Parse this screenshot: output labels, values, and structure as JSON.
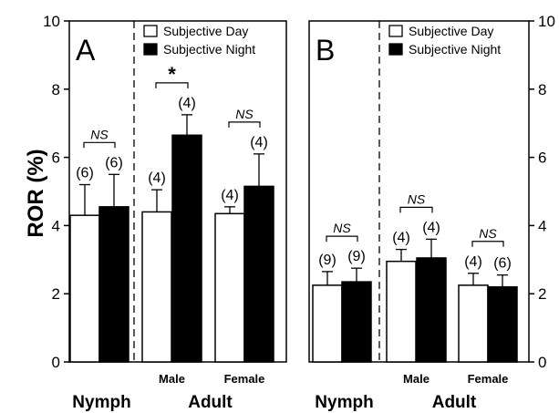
{
  "chart_data": {
    "type": "bar",
    "ylabel": "ROR (%)",
    "ylim": [
      0,
      10
    ],
    "yticks": [
      "0",
      "2",
      "4",
      "6",
      "8",
      "10"
    ],
    "legend": [
      "Subjective Day",
      "Subjective Night"
    ],
    "colors": {
      "day": "#ffffff",
      "night": "#000000"
    },
    "groups": [
      {
        "label": "Nymph",
        "sublabel": ""
      },
      {
        "label": "Adult",
        "sublabel": "Male"
      },
      {
        "label": "",
        "sublabel": "Female"
      }
    ],
    "panels": [
      {
        "label": "A",
        "legend_position": "top-right",
        "groups": [
          {
            "day": {
              "value": 4.3,
              "err": 0.9,
              "n": "(6)"
            },
            "night": {
              "value": 4.55,
              "err": 0.95,
              "n": "(6)"
            },
            "sig": "NS"
          },
          {
            "day": {
              "value": 4.4,
              "err": 0.65,
              "n": "(4)"
            },
            "night": {
              "value": 6.65,
              "err": 0.6,
              "n": "(4)"
            },
            "sig": "*"
          },
          {
            "day": {
              "value": 4.35,
              "err": 0.2,
              "n": "(4)"
            },
            "night": {
              "value": 5.15,
              "err": 0.95,
              "n": "(4)"
            },
            "sig": "NS"
          }
        ]
      },
      {
        "label": "B",
        "legend_position": "top-right",
        "groups": [
          {
            "day": {
              "value": 2.25,
              "err": 0.4,
              "n": "(9)"
            },
            "night": {
              "value": 2.35,
              "err": 0.4,
              "n": "(9)"
            },
            "sig": "NS"
          },
          {
            "day": {
              "value": 2.95,
              "err": 0.35,
              "n": "(4)"
            },
            "night": {
              "value": 3.05,
              "err": 0.55,
              "n": "(4)"
            },
            "sig": "NS"
          },
          {
            "day": {
              "value": 2.25,
              "err": 0.35,
              "n": "(4)"
            },
            "night": {
              "value": 2.2,
              "err": 0.35,
              "n": "(6)"
            },
            "sig": "NS"
          }
        ]
      }
    ]
  }
}
